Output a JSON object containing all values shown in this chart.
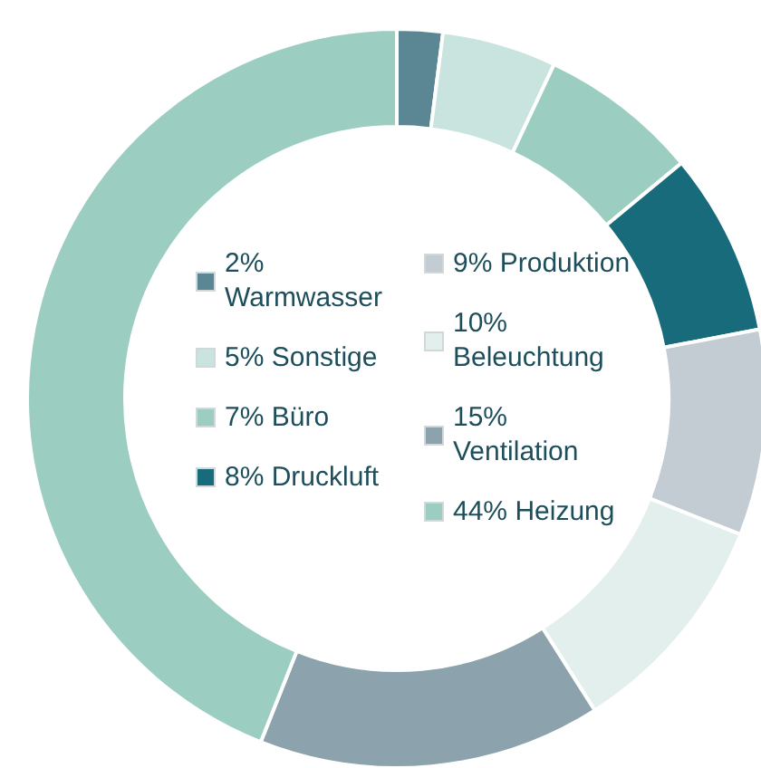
{
  "chart_data": {
    "type": "donut",
    "categories": [
      "Warmwasser",
      "Sonstige",
      "Büro",
      "Druckluft",
      "Produktion",
      "Beleuchtung",
      "Ventilation",
      "Heizung"
    ],
    "values": [
      2,
      5,
      7,
      8,
      9,
      10,
      15,
      44
    ],
    "legend": "center",
    "value_labels": [
      "2%",
      "5%",
      "7%",
      "8%",
      "9%",
      "10%",
      "15%",
      "44%"
    ],
    "colors": [
      "#5b8794",
      "#c9e3de",
      "#9ccdc1",
      "#176b7a",
      "#c3cbd3",
      "#e2efec",
      "#8ca2ad",
      "#9ccdc1"
    ]
  }
}
